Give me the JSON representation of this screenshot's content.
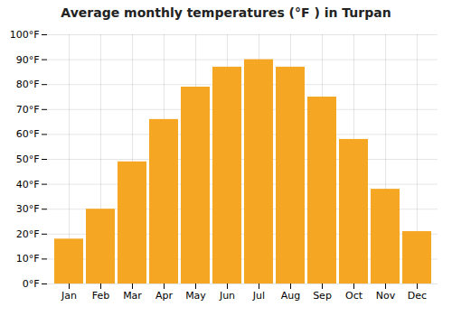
{
  "chart_data": {
    "type": "bar",
    "title": "Average monthly temperatures (°F ) in Turpan",
    "categories": [
      "Jan",
      "Feb",
      "Mar",
      "Apr",
      "May",
      "Jun",
      "Jul",
      "Aug",
      "Sep",
      "Oct",
      "Nov",
      "Dec"
    ],
    "values": [
      18,
      30,
      49,
      66,
      79,
      87,
      90,
      87,
      75,
      58,
      38,
      21
    ],
    "color": "#F5A623",
    "ylim": [
      0,
      100
    ],
    "yticks": [
      {
        "value": 0,
        "label": "0°F"
      },
      {
        "value": 10,
        "label": "10°F"
      },
      {
        "value": 20,
        "label": "20°F"
      },
      {
        "value": 30,
        "label": "30°F"
      },
      {
        "value": 40,
        "label": "40°F"
      },
      {
        "value": 50,
        "label": "50°F"
      },
      {
        "value": 60,
        "label": "60°F"
      },
      {
        "value": 70,
        "label": "70°F"
      },
      {
        "value": 80,
        "label": "80°F"
      },
      {
        "value": 90,
        "label": "90°F"
      },
      {
        "value": 100,
        "label": "100°F"
      }
    ],
    "grid": true
  }
}
